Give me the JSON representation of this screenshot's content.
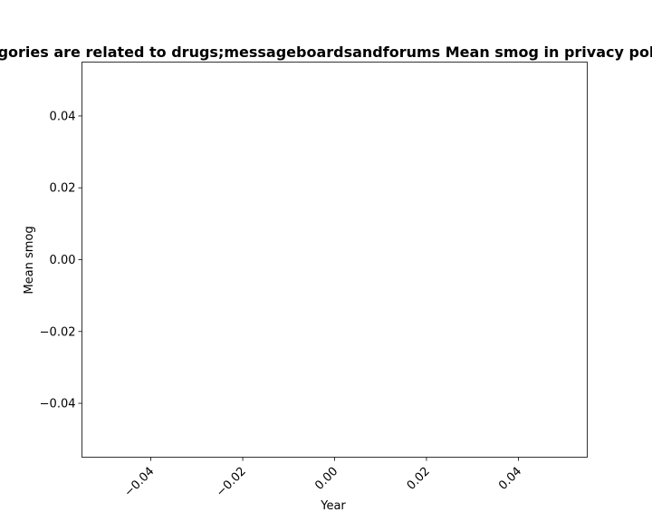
{
  "chart_data": {
    "type": "line",
    "title": "Categories are related to drugs;messageboardsandforums Mean smog in privacy policies",
    "title_visible": "gories are related to drugs;messageboardsandforums Mean smog in privacy pol",
    "xlabel": "Year",
    "ylabel": "Mean smog",
    "xlim": [
      -0.055,
      0.055
    ],
    "ylim": [
      -0.055,
      0.055
    ],
    "x_ticks": [
      -0.04,
      -0.02,
      0.0,
      0.02,
      0.04
    ],
    "x_tick_labels": [
      "−0.04",
      "−0.02",
      "0.00",
      "0.02",
      "0.04"
    ],
    "y_ticks": [
      -0.04,
      -0.02,
      0.0,
      0.02,
      0.04
    ],
    "y_tick_labels": [
      "−0.04",
      "−0.02",
      "0.00",
      "0.02",
      "0.04"
    ],
    "x_tick_rotation": 45,
    "grid": false,
    "series": []
  }
}
